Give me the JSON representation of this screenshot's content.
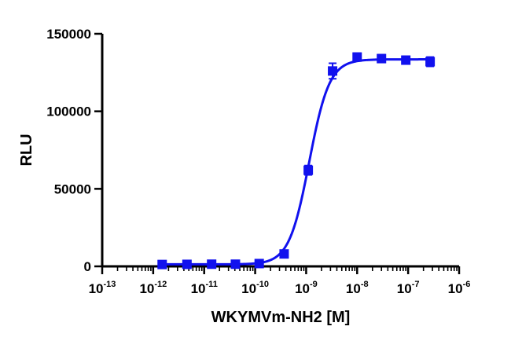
{
  "chart_data": {
    "type": "scatter",
    "title": "",
    "xlabel": "WKYMVm-NH2 [M]",
    "ylabel": "RLU",
    "x_scale": "log",
    "xlim": [
      1e-13,
      1e-06
    ],
    "ylim": [
      0,
      150000
    ],
    "yticks": [
      "0",
      "50000",
      "100000",
      "150000"
    ],
    "yticks_values": [
      0,
      50000,
      100000,
      150000
    ],
    "xticks": [
      {
        "value": 1e-13,
        "base": "10",
        "exp": "-13"
      },
      {
        "value": 1e-12,
        "base": "10",
        "exp": "-12"
      },
      {
        "value": 1e-11,
        "base": "10",
        "exp": "-11"
      },
      {
        "value": 1e-10,
        "base": "10",
        "exp": "-10"
      },
      {
        "value": 1e-09,
        "base": "10",
        "exp": "-9"
      },
      {
        "value": 1e-08,
        "base": "10",
        "exp": "-8"
      },
      {
        "value": 1e-07,
        "base": "10",
        "exp": "-7"
      },
      {
        "value": 1e-06,
        "base": "10",
        "exp": "-6"
      }
    ],
    "grid": false,
    "legend": "none",
    "color": "#1111ee",
    "series": [
      {
        "x": [
          1.5e-12,
          4.6e-12,
          1.4e-11,
          4.1e-11,
          1.2e-10,
          3.7e-10,
          1.1e-09,
          3.3e-09,
          1e-08,
          3e-08,
          9e-08,
          2.7e-07
        ],
        "y": [
          1200,
          1300,
          1400,
          1400,
          1800,
          8000,
          62000,
          126000,
          135000,
          134000,
          133000,
          132000
        ],
        "err": [
          500,
          500,
          500,
          500,
          600,
          1000,
          3000,
          5000,
          2500,
          2500,
          2500,
          3000
        ]
      }
    ],
    "fit": {
      "model": "sigmoidal dose-response",
      "bottom": 1300,
      "top": 133500,
      "ec50": 1.15e-09,
      "hill": 2.2
    }
  }
}
